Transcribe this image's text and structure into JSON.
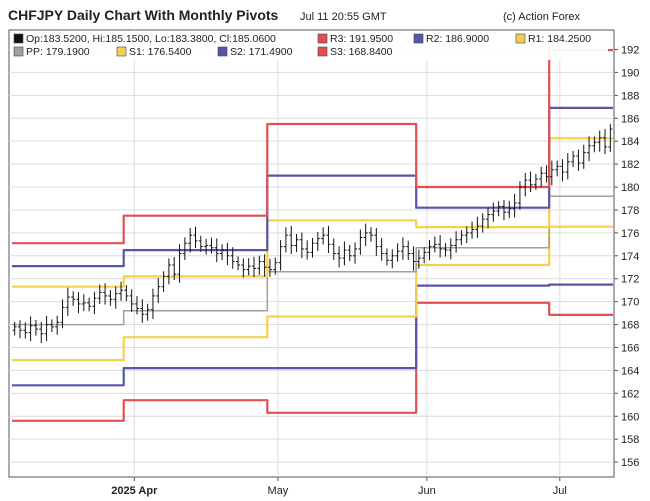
{
  "header": {
    "title": "CHFJPY Daily Chart With Monthly Pivots",
    "timestamp": "Jul 11 20:55 GMT",
    "credit": "(c) Action Forex"
  },
  "legend": [
    {
      "label": "Op:183.5200, Hi:185.1500, Lo:183.3800, Cl:185.0600",
      "color": "#111111"
    },
    {
      "label": "R3: 191.9500",
      "color": "#e05050"
    },
    {
      "label": "R2: 186.9000",
      "color": "#5555aa"
    },
    {
      "label": "R1: 184.2500",
      "color": "#f5d050"
    },
    {
      "label": "PP: 179.1900",
      "color": "#a0a0a0"
    },
    {
      "label": "S1: 176.5400",
      "color": "#f5d050"
    },
    {
      "label": "S2: 171.4900",
      "color": "#5555aa"
    },
    {
      "label": "S3: 168.8400",
      "color": "#e05050"
    }
  ],
  "chart_data": {
    "type": "line",
    "title": "CHFJPY Daily Chart With Monthly Pivots",
    "ylim": [
      154.7,
      193.7
    ],
    "y_ticks": [
      156,
      158,
      160,
      162,
      164,
      166,
      168,
      170,
      172,
      174,
      176,
      178,
      180,
      182,
      184,
      186,
      188,
      190,
      192
    ],
    "x_ticks": [
      {
        "label": "2025 Apr",
        "day": 23
      },
      {
        "label": "May",
        "day": 50
      },
      {
        "label": "Jun",
        "day": 78
      },
      {
        "label": "Jul",
        "day": 103
      }
    ],
    "x_range": [
      0,
      113
    ],
    "pivot_periods": [
      {
        "start": 0,
        "end": 21,
        "R3": 175.1,
        "R2": 173.1,
        "R1": 171.3,
        "PP": 168.0,
        "S1": 164.9,
        "S2": 162.7,
        "S3": 159.6
      },
      {
        "start": 21,
        "end": 48,
        "R3": 177.5,
        "R2": 174.5,
        "R1": 172.2,
        "PP": 169.2,
        "S1": 166.9,
        "S2": 164.2,
        "S3": 161.4
      },
      {
        "start": 48,
        "end": 76,
        "R3": 185.5,
        "R2": 181.0,
        "R1": 177.1,
        "PP": 172.6,
        "S1": 168.7,
        "S2": 164.2,
        "S3": 160.3
      },
      {
        "start": 76,
        "end": 101,
        "R3": 180.0,
        "R2": 178.2,
        "R1": 176.5,
        "PP": 174.7,
        "S1": 173.2,
        "S2": 171.4,
        "S3": 169.9
      },
      {
        "start": 101,
        "end": 113,
        "R3": 191.95,
        "R2": 186.9,
        "R1": 184.25,
        "PP": 179.19,
        "S1": 176.54,
        "S2": 171.49,
        "S3": 168.84
      }
    ],
    "closes": [
      167.8,
      167.5,
      167.3,
      167.9,
      167.6,
      167.2,
      168.0,
      167.8,
      168.2,
      169.5,
      170.4,
      170.2,
      169.8,
      169.9,
      169.6,
      170.3,
      170.8,
      170.5,
      170.2,
      170.7,
      171.0,
      170.5,
      169.8,
      169.4,
      168.9,
      169.3,
      170.5,
      171.3,
      172.2,
      173.2,
      172.4,
      174.2,
      175.1,
      175.8,
      175.3,
      174.8,
      174.9,
      174.7,
      174.2,
      174.5,
      174.0,
      173.5,
      173.2,
      172.8,
      173.1,
      172.9,
      173.5,
      173.0,
      172.8,
      173.4,
      174.8,
      175.8,
      174.9,
      175.4,
      174.6,
      174.3,
      175.1,
      175.5,
      175.8,
      175.0,
      174.2,
      173.8,
      174.5,
      174.0,
      174.6,
      175.6,
      176.0,
      175.8,
      174.8,
      174.2,
      173.6,
      174.0,
      174.4,
      174.8,
      174.2,
      173.5,
      173.8,
      174.3,
      174.8,
      175.0,
      174.6,
      174.5,
      174.9,
      175.4,
      175.8,
      176.0,
      176.3,
      176.6,
      177.2,
      177.6,
      177.9,
      178.3,
      177.8,
      178.1,
      178.6,
      180.0,
      180.6,
      180.2,
      180.7,
      181.2,
      180.9,
      181.5,
      181.8,
      181.3,
      182.2,
      182.7,
      182.1,
      183.0,
      183.6,
      183.9,
      184.3,
      183.5,
      185.06
    ]
  }
}
